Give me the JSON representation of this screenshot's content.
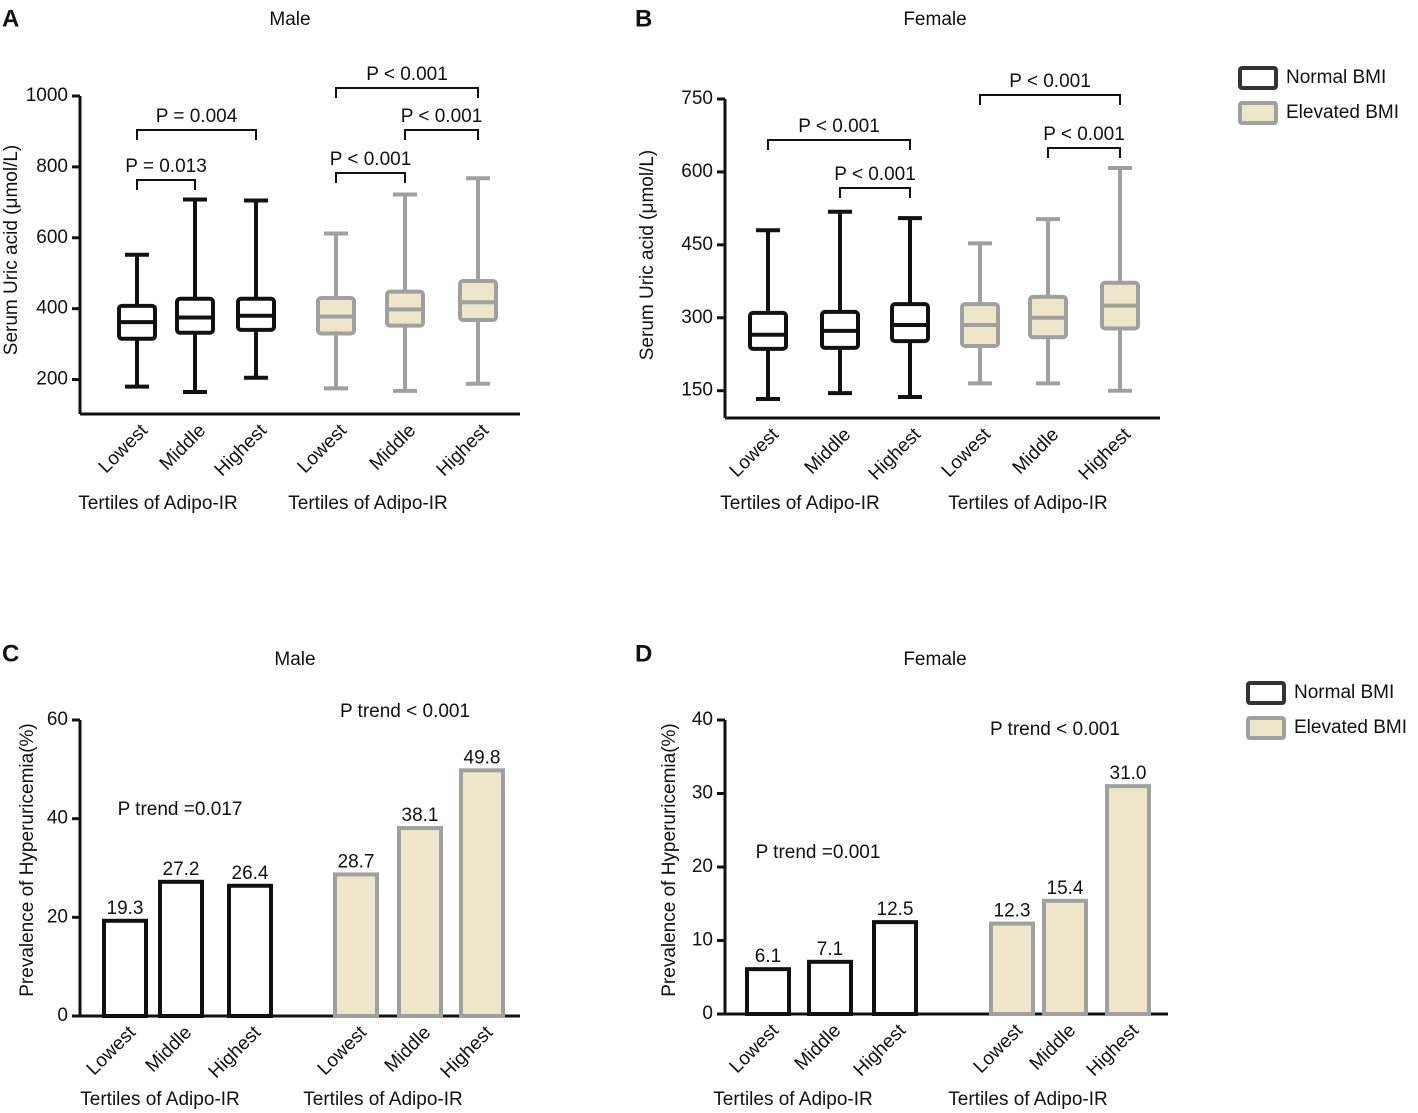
{
  "chart_data": [
    {
      "type": "box",
      "panel": "A",
      "title": "Male",
      "y_label": "Serum Uric acid (μmol/L)",
      "categories": [
        "Lowest",
        "Middle",
        "Highest"
      ],
      "group_labels": [
        "Tertiles of Adipo-IR",
        "Tertiles of Adipo-IR"
      ],
      "ylim": [
        100,
        1000
      ],
      "yticks": [
        200,
        400,
        600,
        800,
        1000
      ],
      "series": [
        {
          "name": "Normal BMI",
          "color": "#111111",
          "fill": "#ffffff",
          "boxes": [
            {
              "min": 180,
              "q1": 315,
              "median": 362,
              "q3": 408,
              "max": 552
            },
            {
              "min": 165,
              "q1": 332,
              "median": 375,
              "q3": 428,
              "max": 708
            },
            {
              "min": 205,
              "q1": 340,
              "median": 380,
              "q3": 428,
              "max": 705
            }
          ]
        },
        {
          "name": "Elevated BMI",
          "color": "#a0a0a0",
          "fill": "#ede6c9",
          "boxes": [
            {
              "min": 175,
              "q1": 330,
              "median": 378,
              "q3": 430,
              "max": 612
            },
            {
              "min": 168,
              "q1": 352,
              "median": 398,
              "q3": 448,
              "max": 722
            },
            {
              "min": 188,
              "q1": 368,
              "median": 418,
              "q3": 478,
              "max": 768
            }
          ]
        }
      ],
      "annotations": [
        "P = 0.013",
        "P = 0.004",
        "P < 0.001",
        "P < 0.001",
        "P < 0.001"
      ]
    },
    {
      "type": "box",
      "panel": "B",
      "title": "Female",
      "y_label": "Serum Uric acid (μmol/L)",
      "categories": [
        "Lowest",
        "Middle",
        "Highest"
      ],
      "group_labels": [
        "Tertiles of Adipo-IR",
        "Tertiles of Adipo-IR"
      ],
      "ylim": [
        100,
        750
      ],
      "yticks": [
        150,
        300,
        450,
        600,
        750
      ],
      "legend": "upper right",
      "series": [
        {
          "name": "Normal BMI",
          "color": "#111111",
          "fill": "#ffffff",
          "boxes": [
            {
              "min": 133,
              "q1": 236,
              "median": 265,
              "q3": 310,
              "max": 480
            },
            {
              "min": 145,
              "q1": 238,
              "median": 273,
              "q3": 312,
              "max": 518
            },
            {
              "min": 137,
              "q1": 252,
              "median": 285,
              "q3": 328,
              "max": 505
            }
          ]
        },
        {
          "name": "Elevated BMI",
          "color": "#a0a0a0",
          "fill": "#ede6c9",
          "boxes": [
            {
              "min": 165,
              "q1": 242,
              "median": 285,
              "q3": 328,
              "max": 453
            },
            {
              "min": 165,
              "q1": 260,
              "median": 300,
              "q3": 343,
              "max": 503
            },
            {
              "min": 150,
              "q1": 278,
              "median": 325,
              "q3": 372,
              "max": 608
            }
          ]
        }
      ],
      "annotations": [
        "P < 0.001",
        "P < 0.001",
        "P < 0.001",
        "P < 0.001"
      ]
    },
    {
      "type": "bar",
      "panel": "C",
      "title": "Male",
      "y_label": "Prevalence of Hyperuricemia(%)",
      "categories": [
        "Lowest",
        "Middle",
        "Highest"
      ],
      "group_labels": [
        "Tertiles of Adipo-IR",
        "Tertiles of Adipo-IR"
      ],
      "ylim": [
        0,
        60
      ],
      "yticks": [
        0,
        20,
        40,
        60
      ],
      "series": [
        {
          "name": "Normal BMI",
          "color": "#111111",
          "fill": "#ffffff",
          "values": [
            19.3,
            27.2,
            26.4
          ],
          "value_labels": [
            "19.3",
            "27.2",
            "26.4"
          ]
        },
        {
          "name": "Elevated BMI",
          "color": "#a0a0a0",
          "fill": "#ede6c9",
          "values": [
            28.7,
            38.1,
            49.8
          ],
          "value_labels": [
            "28.7",
            "38.1",
            "49.8"
          ]
        }
      ],
      "annotations": [
        "P trend =0.017",
        "P trend < 0.001"
      ]
    },
    {
      "type": "bar",
      "panel": "D",
      "title": "Female",
      "y_label": "Prevalence of Hyperuricemia(%)",
      "categories": [
        "Lowest",
        "Middle",
        "Highest"
      ],
      "group_labels": [
        "Tertiles of Adipo-IR",
        "Tertiles of Adipo-IR"
      ],
      "ylim": [
        0,
        40
      ],
      "yticks": [
        0,
        10,
        20,
        30,
        40
      ],
      "legend": "upper right",
      "series": [
        {
          "name": "Normal BMI",
          "color": "#111111",
          "fill": "#ffffff",
          "values": [
            6.1,
            7.1,
            12.5
          ],
          "value_labels": [
            "6.1",
            "7.1",
            "12.5"
          ]
        },
        {
          "name": "Elevated BMI",
          "color": "#a0a0a0",
          "fill": "#ede6c9",
          "values": [
            12.3,
            15.4,
            31.0
          ],
          "value_labels": [
            "12.3",
            "15.4",
            "31.0"
          ]
        }
      ],
      "annotations": [
        "P trend =0.001",
        "P trend < 0.001"
      ]
    }
  ]
}
